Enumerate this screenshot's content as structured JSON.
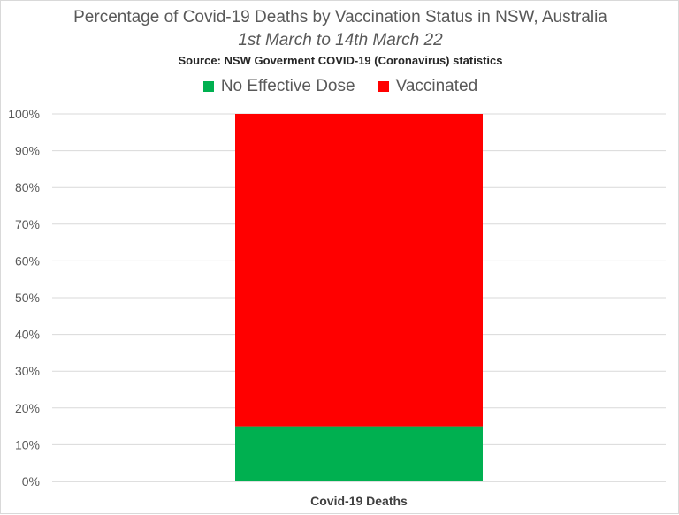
{
  "chart_data": {
    "type": "bar",
    "stacked": true,
    "title": "Percentage of Covid-19 Deaths by Vaccination Status in NSW, Australia",
    "subtitle": "1st March to 14th March 22",
    "source": "Source: NSW Goverment COVID-19 (Coronavirus) statistics",
    "categories": [
      "Covid-19 Deaths"
    ],
    "series": [
      {
        "name": "No Effective Dose",
        "color": "#00b050",
        "values": [
          0.15
        ]
      },
      {
        "name": "Vaccinated",
        "color": "#ff0000",
        "values": [
          0.85
        ]
      }
    ],
    "ylim": [
      0,
      1
    ],
    "yticks": [
      "0%",
      "10%",
      "20%",
      "30%",
      "40%",
      "50%",
      "60%",
      "70%",
      "80%",
      "90%",
      "100%"
    ],
    "grid": true,
    "legend": "top-center"
  }
}
